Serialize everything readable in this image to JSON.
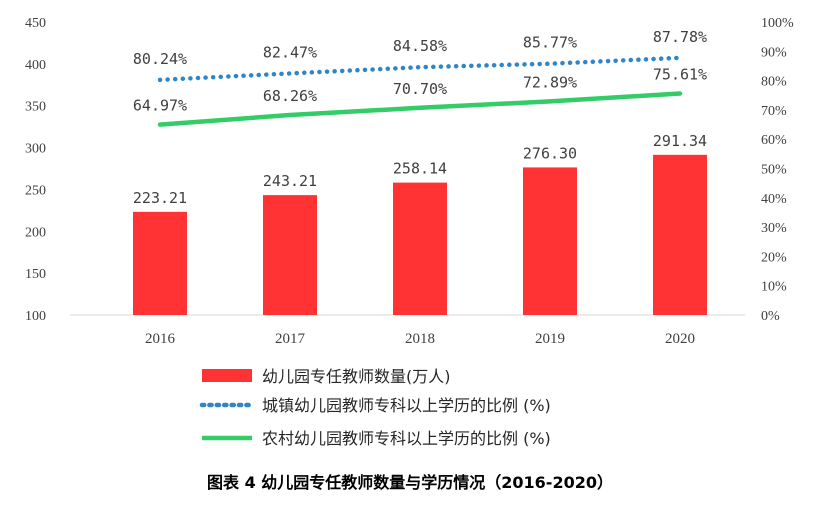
{
  "chart_data": {
    "type": "bar",
    "categories": [
      "2016",
      "2017",
      "2018",
      "2019",
      "2020"
    ],
    "ylim_left": [
      100,
      450
    ],
    "yticks_left": [
      "100",
      "150",
      "200",
      "250",
      "300",
      "350",
      "400",
      "450"
    ],
    "ylim_right": [
      0,
      100
    ],
    "yticks_right": [
      "0%",
      "10%",
      "20%",
      "30%",
      "40%",
      "50%",
      "60%",
      "70%",
      "80%",
      "90%",
      "100%"
    ],
    "grid": false,
    "legend_position": "bottom",
    "series": [
      {
        "name": "幼儿园专任教师数量(万人)",
        "type": "bar",
        "axis": "left",
        "color": "#FF3333",
        "values": [
          223.21,
          243.21,
          258.14,
          276.3,
          291.34
        ],
        "labels": [
          "223.21",
          "243.21",
          "258.14",
          "276.30",
          "291.34"
        ]
      },
      {
        "name": "城镇幼儿园教师专科以上学历的比例 (%)",
        "type": "line",
        "style": "dotted",
        "axis": "right",
        "color": "#2E86C8",
        "values": [
          80.24,
          82.47,
          84.58,
          85.77,
          87.78
        ],
        "labels": [
          "80.24%",
          "82.47%",
          "84.58%",
          "85.77%",
          "87.78%"
        ]
      },
      {
        "name": "农村幼儿园教师专科以上学历的比例 (%)",
        "type": "line",
        "style": "solid",
        "axis": "right",
        "color": "#33CC66",
        "values": [
          64.97,
          68.26,
          70.7,
          72.89,
          75.61
        ],
        "labels": [
          "64.97%",
          "68.26%",
          "70.70%",
          "72.89%",
          "75.61%"
        ]
      }
    ],
    "caption": "图表 4 幼儿园专任教师数量与学历情况（2016-2020）"
  }
}
